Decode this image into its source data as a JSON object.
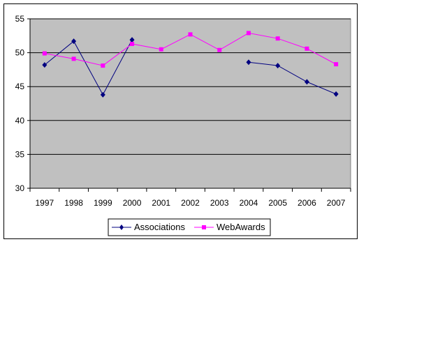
{
  "chart_data": {
    "type": "line",
    "title": "",
    "xlabel": "",
    "ylabel": "",
    "categories": [
      "1997",
      "1998",
      "1999",
      "2000",
      "2001",
      "2002",
      "2003",
      "2004",
      "2005",
      "2006",
      "2007"
    ],
    "ylim": [
      30,
      55
    ],
    "yticks": [
      30,
      35,
      40,
      45,
      50,
      55
    ],
    "grid": true,
    "plot_background": "#c0c0c0",
    "legend_position": "bottom",
    "series": [
      {
        "name": "Associations",
        "color": "#000080",
        "marker": "diamond",
        "values": [
          48.2,
          51.7,
          43.8,
          51.9,
          null,
          null,
          null,
          48.6,
          48.1,
          45.7,
          43.9
        ]
      },
      {
        "name": "WebAwards",
        "color": "#ff00ff",
        "marker": "square",
        "values": [
          49.9,
          49.1,
          48.1,
          51.3,
          50.5,
          52.7,
          50.4,
          52.9,
          52.1,
          50.6,
          48.3
        ]
      }
    ]
  }
}
